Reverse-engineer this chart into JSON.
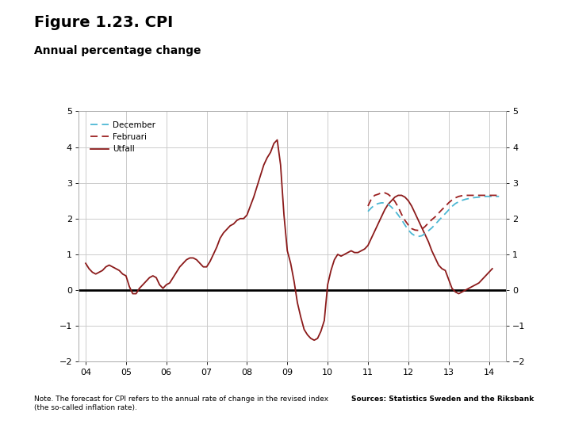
{
  "title": "Figure 1.23. CPI",
  "subtitle": "Annual percentage change",
  "title_fontsize": 14,
  "subtitle_fontsize": 10,
  "note_text": "Note. The forecast for CPI refers to the annual rate of change in the revised index\n(the so-called inflation rate).",
  "source_text": "Sources: Statistics Sweden and the Riksbank",
  "xlim": [
    2003.83,
    2014.42
  ],
  "ylim": [
    -2,
    5
  ],
  "yticks": [
    -2,
    -1,
    0,
    1,
    2,
    3,
    4,
    5
  ],
  "xtick_labels": [
    "04",
    "05",
    "06",
    "07",
    "08",
    "09",
    "10",
    "11",
    "12",
    "13",
    "14"
  ],
  "xtick_positions": [
    2004,
    2005,
    2006,
    2007,
    2008,
    2009,
    2010,
    2011,
    2012,
    2013,
    2014
  ],
  "background_color": "#ffffff",
  "plot_bg_color": "#ffffff",
  "grid_color": "#cccccc",
  "zero_line_color": "#000000",
  "utfall_color": "#8b1a1a",
  "december_color": "#4db8d4",
  "februari_color": "#9b2020",
  "footer_bar_color": "#1a4f8a",
  "utfall_x": [
    2004.0,
    2004.083,
    2004.167,
    2004.25,
    2004.333,
    2004.417,
    2004.5,
    2004.583,
    2004.667,
    2004.75,
    2004.833,
    2004.917,
    2005.0,
    2005.083,
    2005.167,
    2005.25,
    2005.333,
    2005.417,
    2005.5,
    2005.583,
    2005.667,
    2005.75,
    2005.833,
    2005.917,
    2006.0,
    2006.083,
    2006.167,
    2006.25,
    2006.333,
    2006.417,
    2006.5,
    2006.583,
    2006.667,
    2006.75,
    2006.833,
    2006.917,
    2007.0,
    2007.083,
    2007.167,
    2007.25,
    2007.333,
    2007.417,
    2007.5,
    2007.583,
    2007.667,
    2007.75,
    2007.833,
    2007.917,
    2008.0,
    2008.083,
    2008.167,
    2008.25,
    2008.333,
    2008.417,
    2008.5,
    2008.583,
    2008.667,
    2008.75,
    2008.833,
    2008.917,
    2009.0,
    2009.083,
    2009.167,
    2009.25,
    2009.333,
    2009.417,
    2009.5,
    2009.583,
    2009.667,
    2009.75,
    2009.833,
    2009.917,
    2010.0,
    2010.083,
    2010.167,
    2010.25,
    2010.333,
    2010.417,
    2010.5,
    2010.583,
    2010.667,
    2010.75,
    2010.833,
    2010.917,
    2011.0,
    2011.083,
    2011.167,
    2011.25,
    2011.333,
    2011.417,
    2011.5,
    2011.583,
    2011.667,
    2011.75,
    2011.833,
    2011.917,
    2012.0,
    2012.083,
    2012.167,
    2012.25,
    2012.333,
    2012.417,
    2012.5,
    2012.583,
    2012.667,
    2012.75,
    2012.833,
    2012.917,
    2013.0,
    2013.083,
    2013.167,
    2013.25,
    2013.333,
    2013.417,
    2013.5,
    2013.583,
    2013.667,
    2013.75,
    2013.833,
    2013.917,
    2014.0,
    2014.083
  ],
  "utfall_y": [
    0.75,
    0.6,
    0.5,
    0.45,
    0.5,
    0.55,
    0.65,
    0.7,
    0.65,
    0.6,
    0.55,
    0.45,
    0.4,
    0.1,
    -0.1,
    -0.1,
    0.05,
    0.15,
    0.25,
    0.35,
    0.4,
    0.35,
    0.15,
    0.05,
    0.15,
    0.2,
    0.35,
    0.5,
    0.65,
    0.75,
    0.85,
    0.9,
    0.9,
    0.85,
    0.75,
    0.65,
    0.65,
    0.8,
    1.0,
    1.2,
    1.45,
    1.6,
    1.7,
    1.8,
    1.85,
    1.95,
    2.0,
    2.0,
    2.1,
    2.35,
    2.6,
    2.9,
    3.2,
    3.5,
    3.7,
    3.85,
    4.1,
    4.2,
    3.5,
    2.1,
    1.1,
    0.75,
    0.25,
    -0.35,
    -0.75,
    -1.1,
    -1.25,
    -1.35,
    -1.4,
    -1.35,
    -1.15,
    -0.85,
    0.15,
    0.55,
    0.85,
    1.0,
    0.95,
    1.0,
    1.05,
    1.1,
    1.05,
    1.05,
    1.1,
    1.15,
    1.25,
    1.45,
    1.65,
    1.85,
    2.05,
    2.25,
    2.4,
    2.5,
    2.6,
    2.65,
    2.65,
    2.6,
    2.5,
    2.35,
    2.15,
    1.95,
    1.75,
    1.55,
    1.35,
    1.1,
    0.9,
    0.7,
    0.6,
    0.55,
    0.3,
    0.05,
    -0.05,
    -0.1,
    -0.05,
    0.0,
    0.05,
    0.1,
    0.15,
    0.2,
    0.3,
    0.4,
    0.5,
    0.6
  ],
  "december_x": [
    2011.0,
    2011.083,
    2011.167,
    2011.25,
    2011.333,
    2011.417,
    2011.5,
    2011.583,
    2011.667,
    2011.75,
    2011.833,
    2011.917,
    2012.0,
    2012.083,
    2012.167,
    2012.25,
    2012.333,
    2012.417,
    2012.5,
    2012.583,
    2012.667,
    2012.75,
    2012.833,
    2012.917,
    2013.0,
    2013.083,
    2013.167,
    2013.25,
    2013.333,
    2013.417,
    2013.5,
    2013.583,
    2013.667,
    2013.75,
    2013.833,
    2013.917,
    2014.0,
    2014.083,
    2014.167,
    2014.25
  ],
  "december_y": [
    2.2,
    2.3,
    2.38,
    2.42,
    2.44,
    2.44,
    2.4,
    2.32,
    2.22,
    2.1,
    1.97,
    1.82,
    1.68,
    1.58,
    1.52,
    1.5,
    1.52,
    1.58,
    1.66,
    1.74,
    1.84,
    1.94,
    2.04,
    2.14,
    2.24,
    2.34,
    2.42,
    2.47,
    2.51,
    2.54,
    2.56,
    2.58,
    2.59,
    2.6,
    2.61,
    2.62,
    2.62,
    2.62,
    2.62,
    2.62
  ],
  "februari_x": [
    2011.0,
    2011.083,
    2011.167,
    2011.25,
    2011.333,
    2011.417,
    2011.5,
    2011.583,
    2011.667,
    2011.75,
    2011.833,
    2011.917,
    2012.0,
    2012.083,
    2012.167,
    2012.25,
    2012.333,
    2012.417,
    2012.5,
    2012.583,
    2012.667,
    2012.75,
    2012.833,
    2012.917,
    2013.0,
    2013.083,
    2013.167,
    2013.25,
    2013.333,
    2013.417,
    2013.5,
    2013.583,
    2013.667,
    2013.75,
    2013.833,
    2013.917,
    2014.0,
    2014.083,
    2014.167,
    2014.25
  ],
  "februari_y": [
    2.35,
    2.55,
    2.65,
    2.68,
    2.72,
    2.72,
    2.68,
    2.6,
    2.48,
    2.32,
    2.12,
    1.95,
    1.82,
    1.72,
    1.68,
    1.67,
    1.7,
    1.78,
    1.88,
    1.97,
    2.05,
    2.15,
    2.25,
    2.34,
    2.44,
    2.52,
    2.58,
    2.62,
    2.64,
    2.65,
    2.65,
    2.65,
    2.65,
    2.65,
    2.65,
    2.65,
    2.65,
    2.65,
    2.65,
    2.65
  ]
}
